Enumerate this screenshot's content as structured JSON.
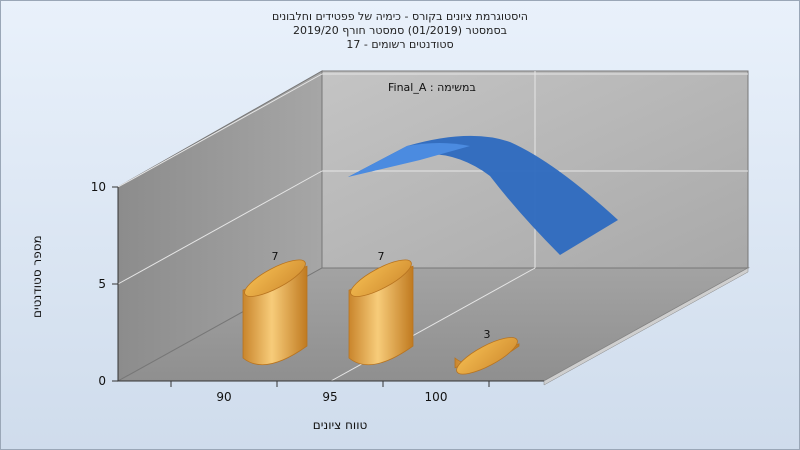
{
  "chart_data": {
    "type": "bar",
    "title_lines": [
      "היסטוגרמת ציונים בקורס - כימיה של פפטידים וחלבונים",
      "בסמסטר (01/2019) סמסטר חורף 2019/20",
      "סטודנטים רשומים - 17"
    ],
    "categories": [
      "90",
      "95",
      "100"
    ],
    "values": [
      7,
      7,
      3
    ],
    "xlabel": "טווח ציונים",
    "ylabel": "מספר סטודנטים",
    "legend_label": "במשימה : Final_A",
    "yticks": [
      "0",
      "5",
      "10"
    ],
    "ylim": [
      0,
      10
    ],
    "grid": true,
    "bar_color": "#e0a040",
    "curve_color": "#2f6bbf"
  }
}
